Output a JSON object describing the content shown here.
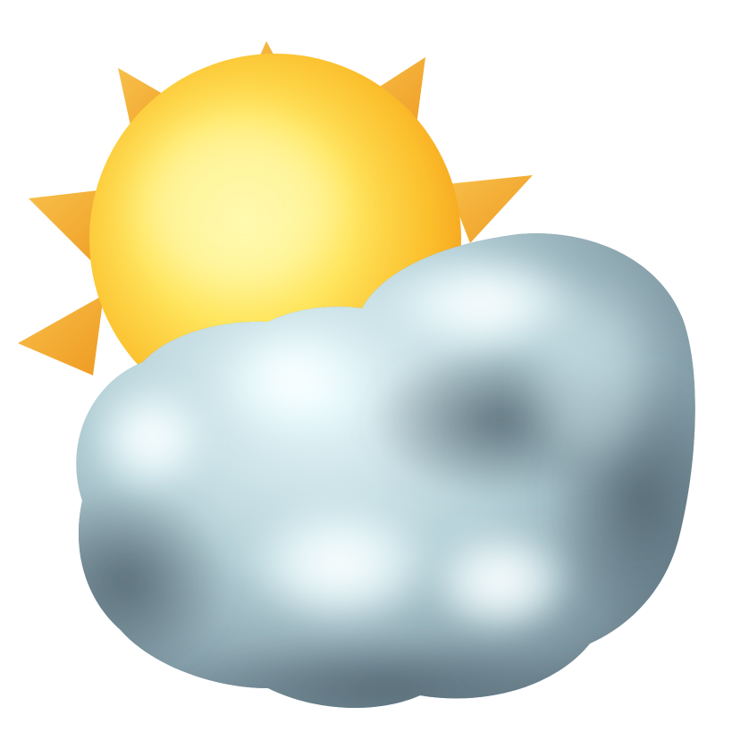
{
  "icon": {
    "name": "sun-behind-cloud-icon",
    "elements": [
      "sun-icon",
      "cloud-icon"
    ]
  },
  "colors": {
    "background": "#ffffff",
    "sun_core": "#ffe55c",
    "sun_edge": "#f6a21e",
    "sun_rays": "#f2a02a",
    "cloud_highlight": "#eefcff",
    "cloud_mid": "#a9c4cd",
    "cloud_shadow": "#556b77",
    "cloud_outline": "#7f9db0"
  }
}
